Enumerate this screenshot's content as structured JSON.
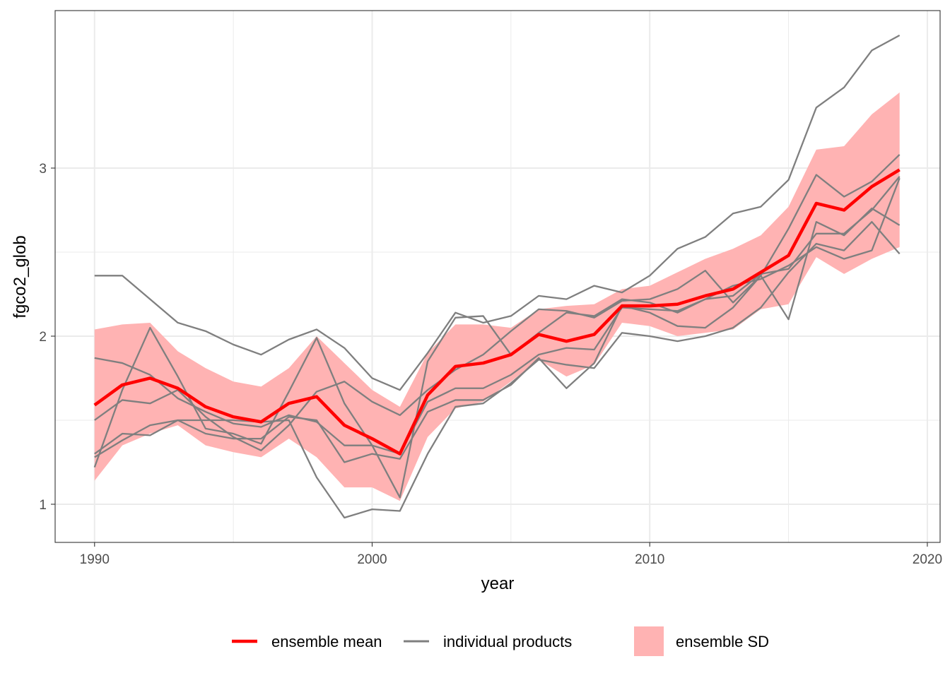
{
  "chart_data": {
    "type": "line",
    "xlabel": "year",
    "ylabel": "fgco2_glob",
    "xlim": [
      1988.58,
      2020.46
    ],
    "ylim": [
      0.773,
      3.937
    ],
    "xticks": [
      1990,
      2000,
      2010,
      2020
    ],
    "yticks": [
      1,
      2,
      3
    ],
    "grid": true,
    "legend_position": "bottom",
    "x": [
      1990,
      1991,
      1992,
      1993,
      1994,
      1995,
      1996,
      1997,
      1998,
      1999,
      2000,
      2001,
      2002,
      2003,
      2004,
      2005,
      2006,
      2007,
      2008,
      2009,
      2010,
      2011,
      2012,
      2013,
      2014,
      2015,
      2016,
      2017,
      2018,
      2019
    ],
    "ensemble_mean": {
      "name": "ensemble mean",
      "color": "#ff0000",
      "values": [
        1.59,
        1.71,
        1.75,
        1.69,
        1.58,
        1.52,
        1.49,
        1.6,
        1.64,
        1.47,
        1.39,
        1.3,
        1.65,
        1.82,
        1.84,
        1.89,
        2.01,
        1.97,
        2.01,
        2.18,
        2.18,
        2.19,
        2.24,
        2.28,
        2.38,
        2.48,
        2.79,
        2.75,
        2.89,
        2.99
      ]
    },
    "ensemble_sd": {
      "name": "ensemble SD",
      "color": "#ffb3b3",
      "values": [
        0.45,
        0.36,
        0.33,
        0.22,
        0.23,
        0.21,
        0.21,
        0.21,
        0.36,
        0.37,
        0.29,
        0.28,
        0.25,
        0.25,
        0.23,
        0.16,
        0.15,
        0.21,
        0.18,
        0.1,
        0.12,
        0.19,
        0.22,
        0.24,
        0.22,
        0.29,
        0.32,
        0.38,
        0.43,
        0.46
      ]
    },
    "individual_products": {
      "name": "individual products",
      "color": "#7f7f7f",
      "series": [
        [
          2.36,
          2.36,
          2.22,
          2.08,
          2.03,
          1.95,
          1.89,
          1.98,
          2.04,
          1.93,
          1.75,
          1.68,
          1.9,
          2.14,
          2.08,
          2.12,
          2.24,
          2.22,
          2.3,
          2.26,
          2.36,
          2.52,
          2.59,
          2.73,
          2.77,
          2.93,
          3.36,
          3.48,
          3.7,
          3.79
        ],
        [
          1.22,
          1.68,
          2.05,
          1.76,
          1.45,
          1.42,
          1.36,
          1.67,
          1.99,
          1.6,
          1.35,
          1.04,
          1.85,
          2.11,
          2.12,
          1.89,
          2.02,
          2.14,
          2.12,
          2.22,
          2.2,
          2.14,
          2.22,
          2.3,
          2.34,
          2.42,
          2.53,
          2.46,
          2.51,
          2.94
        ],
        [
          1.3,
          1.42,
          1.41,
          1.5,
          1.5,
          1.5,
          1.49,
          1.5,
          1.16,
          0.92,
          0.97,
          0.96,
          1.3,
          1.58,
          1.6,
          1.72,
          1.86,
          1.83,
          1.81,
          2.02,
          2.0,
          1.97,
          2.0,
          2.05,
          2.17,
          2.38,
          2.55,
          2.51,
          2.68,
          2.49
        ],
        [
          1.87,
          1.84,
          1.77,
          1.63,
          1.55,
          1.48,
          1.46,
          1.53,
          1.49,
          1.35,
          1.35,
          1.3,
          1.61,
          1.69,
          1.69,
          1.77,
          1.89,
          1.93,
          1.92,
          2.17,
          2.16,
          2.15,
          2.22,
          2.24,
          2.37,
          2.4,
          2.61,
          2.61,
          2.75,
          2.95
        ],
        [
          1.5,
          1.62,
          1.6,
          1.68,
          1.52,
          1.4,
          1.32,
          1.47,
          1.67,
          1.73,
          1.61,
          1.53,
          1.68,
          1.8,
          1.89,
          2.03,
          2.16,
          2.15,
          2.11,
          2.21,
          2.22,
          2.28,
          2.39,
          2.2,
          2.36,
          2.64,
          2.96,
          2.83,
          2.92,
          3.08
        ],
        [
          1.28,
          1.38,
          1.47,
          1.5,
          1.42,
          1.39,
          1.39,
          1.52,
          1.5,
          1.25,
          1.3,
          1.27,
          1.55,
          1.62,
          1.62,
          1.71,
          1.87,
          1.69,
          1.84,
          2.18,
          2.14,
          2.06,
          2.05,
          2.17,
          2.36,
          2.1,
          2.68,
          2.6,
          2.76,
          2.66
        ]
      ]
    }
  },
  "legend": {
    "mean_label": "ensemble mean",
    "products_label": "individual products",
    "sd_label": "ensemble SD"
  }
}
